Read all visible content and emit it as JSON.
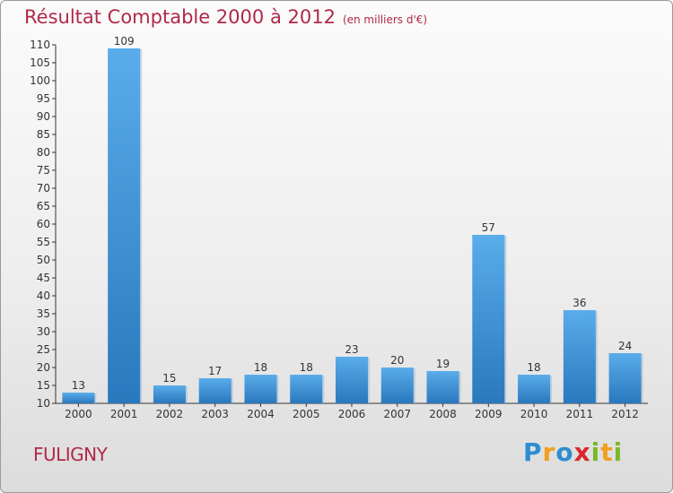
{
  "chart_data": {
    "type": "bar",
    "title": "Résultat Comptable 2000 à 2012",
    "subtitle": "(en milliers d'€)",
    "categories": [
      "2000",
      "2001",
      "2002",
      "2003",
      "2004",
      "2005",
      "2006",
      "2007",
      "2008",
      "2009",
      "2010",
      "2011",
      "2012"
    ],
    "values": [
      13,
      109,
      15,
      17,
      18,
      18,
      23,
      20,
      19,
      57,
      18,
      36,
      24
    ],
    "yticks": [
      "10",
      "15",
      "20",
      "25",
      "30",
      "35",
      "40",
      "45",
      "50",
      "55",
      "60",
      "65",
      "70",
      "75",
      "80",
      "85",
      "90",
      "95",
      "100",
      "105",
      "110"
    ],
    "ylim": [
      10,
      110
    ],
    "xlabel": "",
    "ylabel": "",
    "bar_color": "#3a8fd6",
    "title_color": "#b0294a"
  },
  "location": "FULIGNY",
  "logo": {
    "letters": [
      "P",
      "r",
      "o",
      "x",
      "i",
      "t",
      "i"
    ],
    "colors": [
      "#2c8ed0",
      "#f0a01e",
      "#2c8ed0",
      "#d8282f",
      "#79b82a",
      "#f0a01e",
      "#79b82a"
    ]
  }
}
